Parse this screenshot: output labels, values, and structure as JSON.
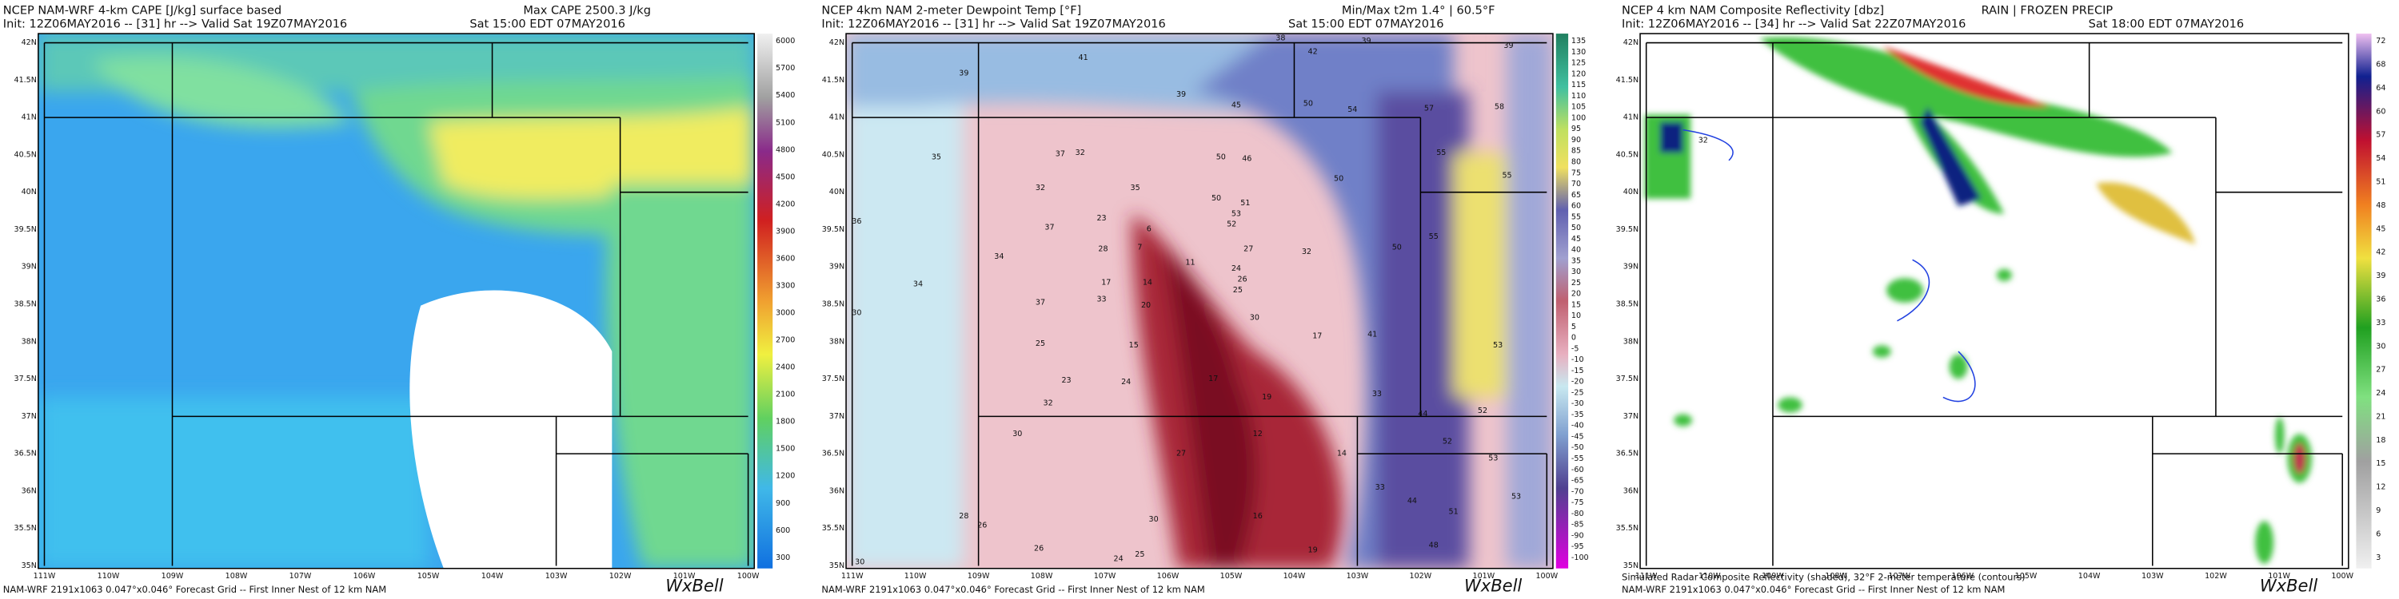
{
  "panels": [
    {
      "title": "NCEP NAM-WRF 4-km CAPE [J/kg] surface based",
      "init": "Init: 12Z06MAY2016 -- [31] hr --> Valid Sat 19Z07MAY2016",
      "note": "Max CAPE 2500.3 J/kg",
      "local_time": "Sat 15:00 EDT 07MAY2016",
      "colorbar": [
        6000,
        5700,
        5400,
        5100,
        4800,
        4500,
        4200,
        3900,
        3600,
        3300,
        3000,
        2700,
        2400,
        2100,
        1800,
        1500,
        1200,
        900,
        600,
        300
      ],
      "footer": "NAM-WRF 2191x1063 0.047°x0.046° Forecast Grid -- First Inner Nest of 12 km NAM",
      "brand": "WxBell"
    },
    {
      "title": "NCEP 4km NAM 2-meter Dewpoint Temp [°F]",
      "init": "Init: 12Z06MAY2016 -- [31] hr --> Valid Sat 19Z07MAY2016",
      "note": "Min/Max t2m 1.4° | 60.5°F",
      "local_time": "Sat 15:00 EDT 07MAY2016",
      "colorbar": [
        135,
        130,
        125,
        120,
        115,
        110,
        105,
        100,
        95,
        90,
        85,
        80,
        75,
        70,
        65,
        60,
        55,
        50,
        45,
        40,
        35,
        30,
        25,
        20,
        15,
        10,
        5,
        0,
        -5,
        -10,
        -15,
        -20,
        -25,
        -30,
        -35,
        -40,
        -45,
        -50,
        -55,
        -60,
        -65,
        -70,
        -75,
        -80,
        -85,
        -90,
        -95,
        -100
      ],
      "map_labels": [
        39,
        41,
        39,
        38,
        42,
        39,
        39,
        45,
        50,
        54,
        57,
        58,
        35,
        37,
        32,
        50,
        46,
        50,
        55,
        55,
        32,
        35,
        50,
        51,
        53,
        52,
        36,
        23,
        6,
        28,
        7,
        37,
        34,
        32,
        27,
        50,
        55,
        34,
        11,
        24,
        26,
        25,
        14,
        17,
        33,
        20,
        37,
        30,
        30,
        17,
        41,
        25,
        15,
        53,
        23,
        24,
        17,
        33,
        32,
        19,
        44,
        52,
        30,
        12,
        52,
        14,
        27,
        53,
        33,
        44,
        51,
        53,
        28,
        26,
        30,
        16,
        26,
        24,
        25,
        19,
        48,
        30
      ],
      "footer": "NAM-WRF 2191x1063 0.047°x0.046° Forecast Grid -- First Inner Nest of 12 km NAM",
      "brand": "WxBell"
    },
    {
      "title": "NCEP 4 km NAM Composite Reflectivity [dbz]",
      "precip_types": "RAIN | FROZEN PRECIP",
      "init": "Init: 12Z06MAY2016 -- [34] hr --> Valid Sat 22Z07MAY2016",
      "local_time": "Sat 18:00 EDT 07MAY2016",
      "colorbar": [
        72,
        68,
        64,
        60,
        57,
        54,
        51,
        48,
        45,
        42,
        39,
        36,
        33,
        30,
        27,
        24,
        21,
        18,
        15,
        12,
        9,
        6,
        3
      ],
      "map_labels": [
        32
      ],
      "footer_overlay": "Simulated Radar Composite Reflectivity (shaded), 32°F 2-meter temperature (contours)",
      "footer": "NAM-WRF 2191x1063 0.047°x0.046° Forecast Grid -- First Inner Nest of 12 km NAM",
      "brand": "WxBell"
    }
  ],
  "latitudes": [
    "42N",
    "41.5N",
    "41N",
    "40.5N",
    "40N",
    "39.5N",
    "39N",
    "38.5N",
    "38N",
    "37.5N",
    "37N",
    "36.5N",
    "36N",
    "35.5N",
    "35N"
  ],
  "longitudes": [
    "111W",
    "110W",
    "109W",
    "108W",
    "107W",
    "106W",
    "105W",
    "104W",
    "103W",
    "102W",
    "101W",
    "100W"
  ]
}
